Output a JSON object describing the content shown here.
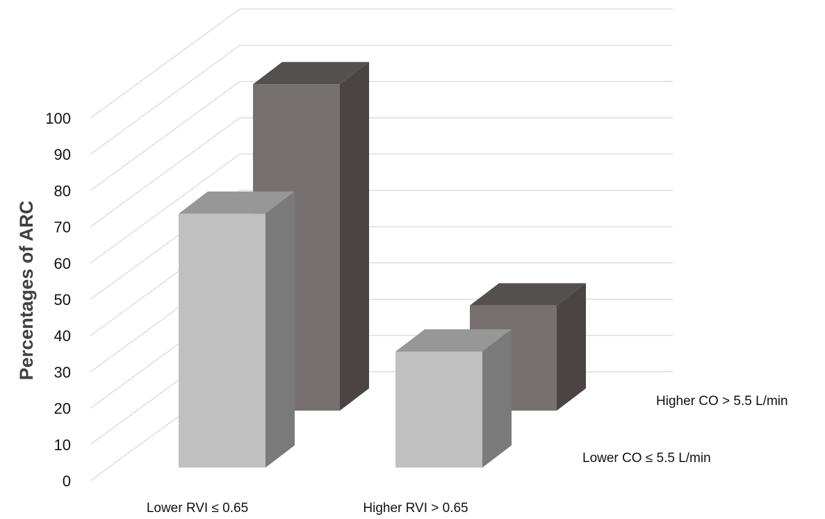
{
  "chart_data": {
    "type": "bar",
    "subtype": "3d-column",
    "title": "",
    "ylabel": "Percentages of ARC",
    "xlabel": "",
    "ylim": [
      0,
      100
    ],
    "y_ticks": [
      "0",
      "10",
      "20",
      "30",
      "40",
      "50",
      "60",
      "70",
      "80",
      "90",
      "100"
    ],
    "categories": [
      "Lower RVI ≤ 0.65",
      "Higher RVI > 0.65"
    ],
    "series": [
      {
        "name": "Lower CO ≤ 5.5 L/min",
        "values": [
          70,
          32
        ]
      },
      {
        "name": "Higher CO > 5.5 L/min",
        "values": [
          90,
          29
        ]
      }
    ],
    "grid": true,
    "legend": "depth-axis labels at right"
  },
  "colors": {
    "front_series": {
      "front": "#c0c0c0",
      "top": "#979797",
      "side": "#7a7a7a"
    },
    "back_series": {
      "front": "#767170",
      "top": "#545050",
      "side": "#4a4544"
    },
    "grid": "#d6d6d6"
  }
}
